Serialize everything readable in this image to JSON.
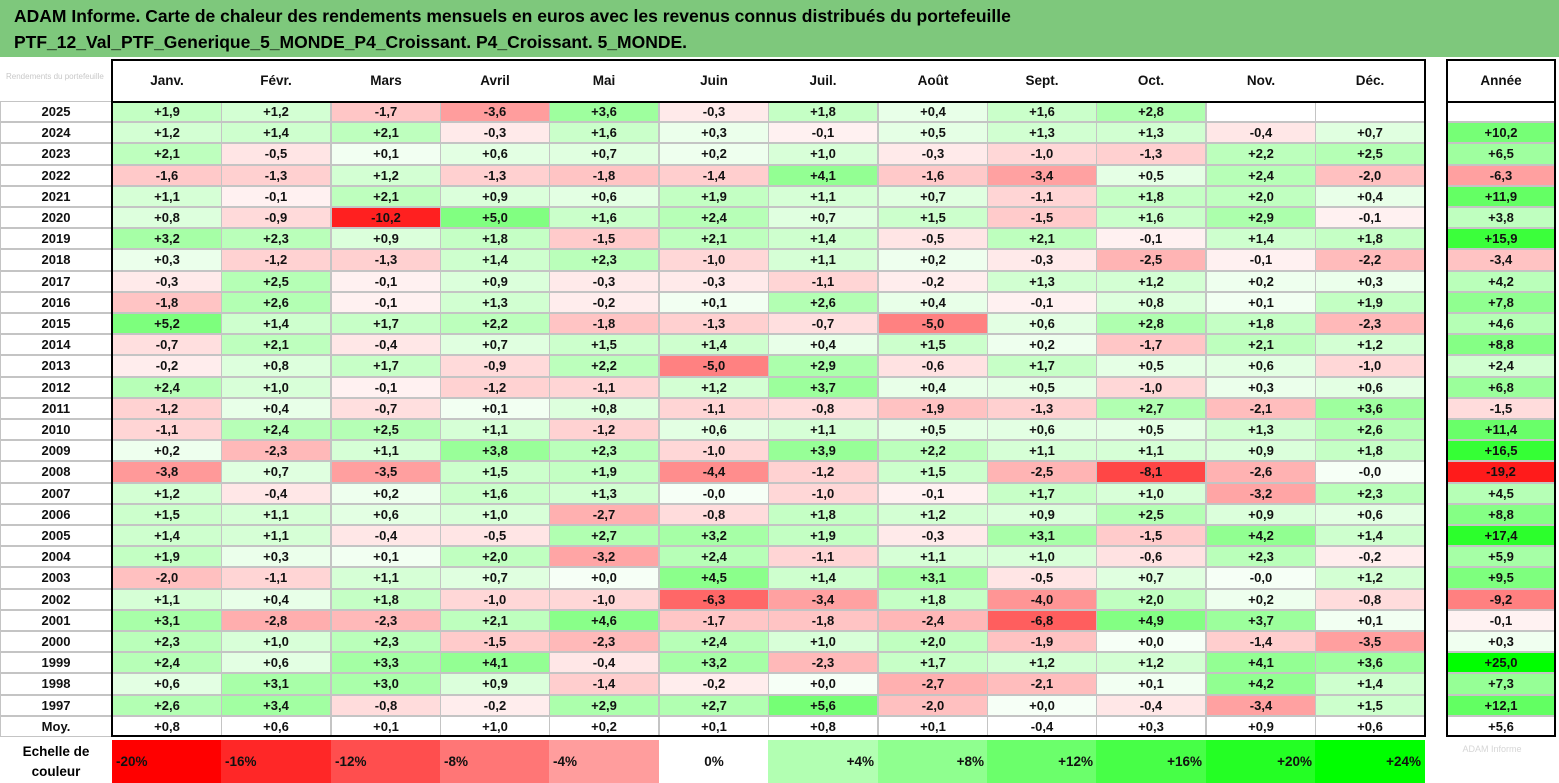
{
  "title_line1": "ADAM Informe. Carte de chaleur des rendements mensuels en euros avec les revenus connus distribués du portefeuille",
  "title_line2": "PTF_12_Val_PTF_Generique_5_MONDE_P4_Croissant. P4_Croissant. 5_MONDE.",
  "corner_label": "Rendements du portefeuille",
  "watermark": "ADAM Informe",
  "legend_label": "Echelle de couleur",
  "colors": {
    "header_bg": "#7ec87c",
    "negative_max": "#ff0000",
    "positive_max": "#00ff00",
    "neutral": "#ffffff"
  },
  "chart_data": {
    "type": "heatmap",
    "columns": [
      "Janv.",
      "Févr.",
      "Mars",
      "Avril",
      "Mai",
      "Juin",
      "Juil.",
      "Août",
      "Sept.",
      "Oct.",
      "Nov.",
      "Déc."
    ],
    "annual_header": "Année",
    "rows": [
      {
        "label": "2025",
        "values": [
          "+1,9",
          "+1,2",
          "-1,7",
          "-3,6",
          "+3,6",
          "-0,3",
          "+1,8",
          "+0,4",
          "+1,6",
          "+2,8",
          "",
          ""
        ],
        "annual": ""
      },
      {
        "label": "2024",
        "values": [
          "+1,2",
          "+1,4",
          "+2,1",
          "-0,3",
          "+1,6",
          "+0,3",
          "-0,1",
          "+0,5",
          "+1,3",
          "+1,3",
          "-0,4",
          "+0,7"
        ],
        "annual": "+10,2"
      },
      {
        "label": "2023",
        "values": [
          "+2,1",
          "-0,5",
          "+0,1",
          "+0,6",
          "+0,7",
          "+0,2",
          "+1,0",
          "-0,3",
          "-1,0",
          "-1,3",
          "+2,2",
          "+2,5"
        ],
        "annual": "+6,5"
      },
      {
        "label": "2022",
        "values": [
          "-1,6",
          "-1,3",
          "+1,2",
          "-1,3",
          "-1,8",
          "-1,4",
          "+4,1",
          "-1,6",
          "-3,4",
          "+0,5",
          "+2,4",
          "-2,0"
        ],
        "annual": "-6,3"
      },
      {
        "label": "2021",
        "values": [
          "+1,1",
          "-0,1",
          "+2,1",
          "+0,9",
          "+0,6",
          "+1,9",
          "+1,1",
          "+0,7",
          "-1,1",
          "+1,8",
          "+2,0",
          "+0,4"
        ],
        "annual": "+11,9"
      },
      {
        "label": "2020",
        "values": [
          "+0,8",
          "-0,9",
          "-10,2",
          "+5,0",
          "+1,6",
          "+2,4",
          "+0,7",
          "+1,5",
          "-1,5",
          "+1,6",
          "+2,9",
          "-0,1"
        ],
        "annual": "+3,8"
      },
      {
        "label": "2019",
        "values": [
          "+3,2",
          "+2,3",
          "+0,9",
          "+1,8",
          "-1,5",
          "+2,1",
          "+1,4",
          "-0,5",
          "+2,1",
          "-0,1",
          "+1,4",
          "+1,8"
        ],
        "annual": "+15,9"
      },
      {
        "label": "2018",
        "values": [
          "+0,3",
          "-1,2",
          "-1,3",
          "+1,4",
          "+2,3",
          "-1,0",
          "+1,1",
          "+0,2",
          "-0,3",
          "-2,5",
          "-0,1",
          "-2,2"
        ],
        "annual": "-3,4"
      },
      {
        "label": "2017",
        "values": [
          "-0,3",
          "+2,5",
          "-0,1",
          "+0,9",
          "-0,3",
          "-0,3",
          "-1,1",
          "-0,2",
          "+1,3",
          "+1,2",
          "+0,2",
          "+0,3"
        ],
        "annual": "+4,2"
      },
      {
        "label": "2016",
        "values": [
          "-1,8",
          "+2,6",
          "-0,1",
          "+1,3",
          "-0,2",
          "+0,1",
          "+2,6",
          "+0,4",
          "-0,1",
          "+0,8",
          "+0,1",
          "+1,9"
        ],
        "annual": "+7,8"
      },
      {
        "label": "2015",
        "values": [
          "+5,2",
          "+1,4",
          "+1,7",
          "+2,2",
          "-1,8",
          "-1,3",
          "-0,7",
          "-5,0",
          "+0,6",
          "+2,8",
          "+1,8",
          "-2,3"
        ],
        "annual": "+4,6"
      },
      {
        "label": "2014",
        "values": [
          "-0,7",
          "+2,1",
          "-0,4",
          "+0,7",
          "+1,5",
          "+1,4",
          "+0,4",
          "+1,5",
          "+0,2",
          "-1,7",
          "+2,1",
          "+1,2"
        ],
        "annual": "+8,8"
      },
      {
        "label": "2013",
        "values": [
          "-0,2",
          "+0,8",
          "+1,7",
          "-0,9",
          "+2,2",
          "-5,0",
          "+2,9",
          "-0,6",
          "+1,7",
          "+0,5",
          "+0,6",
          "-1,0"
        ],
        "annual": "+2,4"
      },
      {
        "label": "2012",
        "values": [
          "+2,4",
          "+1,0",
          "-0,1",
          "-1,2",
          "-1,1",
          "+1,2",
          "+3,7",
          "+0,4",
          "+0,5",
          "-1,0",
          "+0,3",
          "+0,6"
        ],
        "annual": "+6,8"
      },
      {
        "label": "2011",
        "values": [
          "-1,2",
          "+0,4",
          "-0,7",
          "+0,1",
          "+0,8",
          "-1,1",
          "-0,8",
          "-1,9",
          "-1,3",
          "+2,7",
          "-2,1",
          "+3,6"
        ],
        "annual": "-1,5"
      },
      {
        "label": "2010",
        "values": [
          "-1,1",
          "+2,4",
          "+2,5",
          "+1,1",
          "-1,2",
          "+0,6",
          "+1,1",
          "+0,5",
          "+0,6",
          "+0,5",
          "+1,3",
          "+2,6"
        ],
        "annual": "+11,4"
      },
      {
        "label": "2009",
        "values": [
          "+0,2",
          "-2,3",
          "+1,1",
          "+3,8",
          "+2,3",
          "-1,0",
          "+3,9",
          "+2,2",
          "+1,1",
          "+1,1",
          "+0,9",
          "+1,8"
        ],
        "annual": "+16,5"
      },
      {
        "label": "2008",
        "values": [
          "-3,8",
          "+0,7",
          "-3,5",
          "+1,5",
          "+1,9",
          "-4,4",
          "-1,2",
          "+1,5",
          "-2,5",
          "-8,1",
          "-2,6",
          "-0,0"
        ],
        "annual": "-19,2"
      },
      {
        "label": "2007",
        "values": [
          "+1,2",
          "-0,4",
          "+0,2",
          "+1,6",
          "+1,3",
          "-0,0",
          "-1,0",
          "-0,1",
          "+1,7",
          "+1,0",
          "-3,2",
          "+2,3"
        ],
        "annual": "+4,5"
      },
      {
        "label": "2006",
        "values": [
          "+1,5",
          "+1,1",
          "+0,6",
          "+1,0",
          "-2,7",
          "-0,8",
          "+1,8",
          "+1,2",
          "+0,9",
          "+2,5",
          "+0,9",
          "+0,6"
        ],
        "annual": "+8,8"
      },
      {
        "label": "2005",
        "values": [
          "+1,4",
          "+1,1",
          "-0,4",
          "-0,5",
          "+2,7",
          "+3,2",
          "+1,9",
          "-0,3",
          "+3,1",
          "-1,5",
          "+4,2",
          "+1,4"
        ],
        "annual": "+17,4"
      },
      {
        "label": "2004",
        "values": [
          "+1,9",
          "+0,3",
          "+0,1",
          "+2,0",
          "-3,2",
          "+2,4",
          "-1,1",
          "+1,1",
          "+1,0",
          "-0,6",
          "+2,3",
          "-0,2"
        ],
        "annual": "+5,9"
      },
      {
        "label": "2003",
        "values": [
          "-2,0",
          "-1,1",
          "+1,1",
          "+0,7",
          "+0,0",
          "+4,5",
          "+1,4",
          "+3,1",
          "-0,5",
          "+0,7",
          "-0,0",
          "+1,2"
        ],
        "annual": "+9,5"
      },
      {
        "label": "2002",
        "values": [
          "+1,1",
          "+0,4",
          "+1,8",
          "-1,0",
          "-1,0",
          "-6,3",
          "-3,4",
          "+1,8",
          "-4,0",
          "+2,0",
          "+0,2",
          "-0,8"
        ],
        "annual": "-9,2"
      },
      {
        "label": "2001",
        "values": [
          "+3,1",
          "-2,8",
          "-2,3",
          "+2,1",
          "+4,6",
          "-1,7",
          "-1,8",
          "-2,4",
          "-6,8",
          "+4,9",
          "+3,7",
          "+0,1"
        ],
        "annual": "-0,1"
      },
      {
        "label": "2000",
        "values": [
          "+2,3",
          "+1,0",
          "+2,3",
          "-1,5",
          "-2,3",
          "+2,4",
          "+1,0",
          "+2,0",
          "-1,9",
          "+0,0",
          "-1,4",
          "-3,5"
        ],
        "annual": "+0,3"
      },
      {
        "label": "1999",
        "values": [
          "+2,4",
          "+0,6",
          "+3,3",
          "+4,1",
          "-0,4",
          "+3,2",
          "-2,3",
          "+1,7",
          "+1,2",
          "+1,2",
          "+4,1",
          "+3,6"
        ],
        "annual": "+25,0"
      },
      {
        "label": "1998",
        "values": [
          "+0,6",
          "+3,1",
          "+3,0",
          "+0,9",
          "-1,4",
          "-0,2",
          "+0,0",
          "-2,7",
          "-2,1",
          "+0,1",
          "+4,2",
          "+1,4"
        ],
        "annual": "+7,3"
      },
      {
        "label": "1997",
        "values": [
          "+2,6",
          "+3,4",
          "-0,8",
          "-0,2",
          "+2,9",
          "+2,7",
          "+5,6",
          "-2,0",
          "+0,0",
          "-0,4",
          "-3,4",
          "+1,5"
        ],
        "annual": "+12,1"
      }
    ],
    "average_row": {
      "label": "Moy.",
      "values": [
        "+0,8",
        "+0,6",
        "+0,1",
        "+1,0",
        "+0,2",
        "+0,1",
        "+0,8",
        "+0,1",
        "-0,4",
        "+0,3",
        "+0,9",
        "+0,6"
      ],
      "annual": "+5,6"
    },
    "color_scale": [
      "-20%",
      "-16%",
      "-12%",
      "-8%",
      "-4%",
      "0%",
      "+4%",
      "+8%",
      "+12%",
      "+16%",
      "+20%",
      "+24%"
    ]
  }
}
